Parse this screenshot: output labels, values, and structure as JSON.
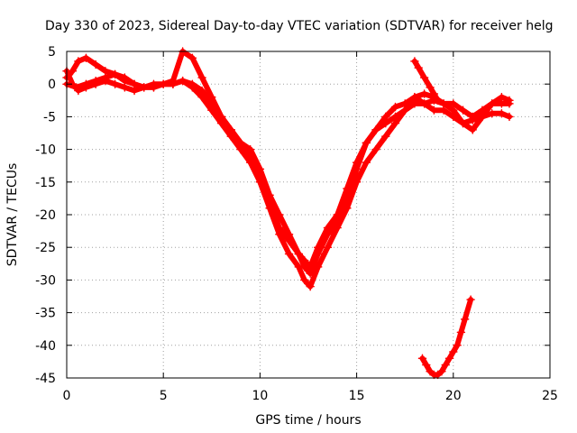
{
  "chart_data": {
    "type": "scatter",
    "title": "Day 330 of 2023, Sidereal Day-to-day VTEC variation (SDTVAR) for receiver helg",
    "xlabel": "GPS time / hours",
    "ylabel": "SDTVAR / TECUs",
    "xlim": [
      0,
      25
    ],
    "ylim": [
      -45,
      5
    ],
    "xticks": [
      0,
      5,
      10,
      15,
      20,
      25
    ],
    "yticks": [
      5,
      0,
      -5,
      -10,
      -15,
      -20,
      -25,
      -30,
      -35,
      -40,
      -45
    ],
    "grid": true,
    "marker": "plus",
    "color": "#ff0000",
    "series": [
      {
        "x": [
          0.0,
          0.3,
          0.6,
          1.0,
          1.5,
          2.0,
          2.5,
          3.0,
          3.5,
          4.0,
          4.5,
          5.0,
          5.5,
          6.0,
          6.5,
          7.0,
          7.5,
          8.0,
          8.5,
          9.0,
          9.5,
          10.0,
          10.5,
          11.0,
          11.5,
          12.0,
          12.3,
          12.6,
          13.0,
          13.5,
          14.0,
          14.5,
          15.0,
          15.5,
          16.0,
          16.5,
          17.0,
          17.5,
          18.0,
          18.5,
          19.0,
          19.5,
          20.0,
          20.5,
          21.0,
          21.5,
          22.0,
          22.5,
          22.9
        ],
        "y": [
          2,
          0,
          -1,
          -0.5,
          0,
          0.5,
          0,
          -0.5,
          -1,
          -0.5,
          0,
          0,
          0,
          0.5,
          0,
          -1,
          -3,
          -5,
          -7,
          -9,
          -10,
          -13,
          -17,
          -20,
          -23,
          -26,
          -28,
          -29,
          -26,
          -23,
          -21,
          -18,
          -13,
          -9,
          -7,
          -6,
          -5,
          -4,
          -3,
          -3,
          -2.5,
          -3,
          -3,
          -4,
          -5,
          -4,
          -3,
          -3,
          -3
        ]
      },
      {
        "x": [
          0.0,
          0.5,
          1.0,
          1.5,
          2.0,
          2.5,
          3.0,
          3.5,
          4.0,
          4.5,
          5.0,
          5.5,
          6.0,
          6.5,
          7.0,
          7.5,
          8.0,
          8.5,
          9.0,
          9.5,
          10.0,
          10.5,
          11.0,
          11.5,
          12.0,
          12.3,
          12.6,
          13.0,
          13.5,
          14.0,
          14.5,
          15.0,
          15.5,
          16.0,
          16.5,
          17.0,
          17.5,
          18.0,
          18.5,
          19.0,
          19.5,
          20.0,
          20.5,
          21.0,
          21.5,
          22.0,
          22.5,
          22.9
        ],
        "y": [
          0,
          -0.5,
          0,
          0.5,
          1,
          1.5,
          0.5,
          0,
          -0.5,
          -0.5,
          0,
          0,
          0.5,
          -0.5,
          -2,
          -4,
          -6,
          -8,
          -10,
          -12,
          -15,
          -19,
          -23,
          -26,
          -28,
          -30,
          -31,
          -28,
          -25,
          -22,
          -19,
          -15,
          -12,
          -10,
          -8,
          -6,
          -4,
          -2,
          -3,
          -4,
          -4,
          -5,
          -6,
          -5.5,
          -5,
          -4.5,
          -4.5,
          -5
        ]
      },
      {
        "x": [
          0.0,
          0.3,
          0.6,
          1.0,
          1.5,
          2.0,
          2.5,
          3.0,
          3.5,
          4.0,
          4.5,
          5.0,
          5.5,
          6.0,
          6.5,
          7.0,
          7.5,
          8.0,
          8.5,
          9.0,
          9.5,
          10.0,
          10.5,
          11.0,
          11.5,
          12.0,
          12.3,
          12.6,
          13.0,
          13.5,
          14.0,
          14.5,
          15.0,
          15.5,
          16.0,
          16.5,
          17.0,
          17.5,
          18.0,
          18.5,
          19.0,
          19.5,
          20.0,
          20.5,
          21.0,
          21.5,
          22.0,
          22.5,
          22.9
        ],
        "y": [
          1,
          2,
          3.5,
          4,
          3,
          2,
          1.5,
          1,
          0,
          -0.5,
          -0.5,
          0,
          0.5,
          5,
          4,
          1,
          -2,
          -5,
          -7,
          -9,
          -11,
          -14,
          -18,
          -22,
          -24,
          -26,
          -27,
          -28,
          -25,
          -22,
          -20,
          -16,
          -12,
          -9,
          -7,
          -5,
          -3.5,
          -3,
          -2,
          -1.5,
          -2,
          -3,
          -4,
          -6,
          -7,
          -5,
          -3,
          -2,
          -2.5
        ]
      },
      {
        "x": [
          18.0,
          18.2,
          18.5,
          18.8,
          19.0,
          19.2
        ],
        "y": [
          3.5,
          2.5,
          1,
          -0.5,
          -1.5,
          -2.5
        ]
      },
      {
        "x": [
          18.4,
          18.6,
          18.8,
          19.0,
          19.2,
          19.4,
          19.6,
          19.8,
          20.0,
          20.2,
          20.4,
          20.6,
          20.9
        ],
        "y": [
          -42,
          -43,
          -44,
          -44.5,
          -44.5,
          -44,
          -43,
          -42,
          -41,
          -40,
          -38,
          -36,
          -33
        ]
      }
    ]
  }
}
